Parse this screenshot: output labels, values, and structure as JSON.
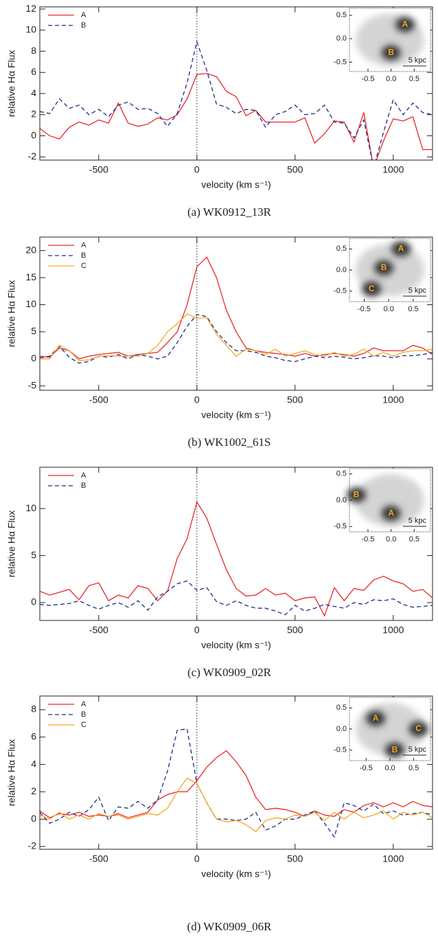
{
  "chart_data": [
    {
      "type": "line",
      "caption": "(a) WK0912_13R",
      "xlabel": "velocity (km s⁻¹)",
      "ylabel": "relative Hα Flux",
      "xlim": [
        -800,
        1200
      ],
      "xticks": [
        -500,
        0,
        500,
        1000
      ],
      "ylim": [
        -2.3,
        12.2
      ],
      "yticks": [
        -2,
        0,
        2,
        4,
        6,
        8,
        10,
        12
      ],
      "vline": 0,
      "legend": "upper left",
      "x": [
        -800,
        -750,
        -700,
        -650,
        -600,
        -550,
        -500,
        -450,
        -400,
        -350,
        -300,
        -250,
        -200,
        -150,
        -100,
        -50,
        0,
        50,
        100,
        150,
        200,
        250,
        300,
        350,
        400,
        450,
        500,
        550,
        600,
        650,
        700,
        750,
        800,
        850,
        900,
        950,
        1000,
        1050,
        1100,
        1150,
        1200
      ],
      "series": [
        {
          "name": "A",
          "color": "#e8262a",
          "linestyle": "solid",
          "values": [
            0.7,
            0,
            -0.3,
            0.8,
            1.3,
            1.0,
            1.5,
            1.2,
            3.1,
            1.2,
            0.9,
            1.1,
            1.7,
            1.5,
            2.0,
            3.5,
            5.8,
            5.9,
            5.6,
            4.2,
            3.7,
            1.9,
            2.4,
            1.3,
            1.3,
            1.3,
            1.3,
            1.7,
            -0.7,
            0.2,
            1.4,
            1.3,
            -0.6,
            2.2,
            -3.0,
            -0.5,
            1.6,
            1.4,
            1.8,
            -1.3,
            -1.3
          ]
        },
        {
          "name": "B",
          "color": "#1c2a85",
          "linestyle": "dashed",
          "values": [
            2.3,
            2.1,
            3.5,
            2.6,
            2.9,
            2.0,
            2.5,
            1.8,
            2.9,
            3.2,
            2.5,
            2.6,
            2.1,
            0.9,
            2.1,
            5.0,
            8.9,
            6.2,
            3.0,
            2.7,
            2.1,
            2.5,
            2.4,
            0.8,
            2.0,
            2.3,
            2.9,
            2.0,
            2.1,
            2.9,
            1.3,
            1.2,
            -0.2,
            1.5,
            -3.0,
            0.3,
            3.4,
            2.0,
            3.1,
            2.2,
            2.0
          ]
        }
      ],
      "inset": {
        "xlim": [
          -0.9,
          0.85
        ],
        "ylim": [
          -0.7,
          0.65
        ],
        "xticks": [
          -0.5,
          {
            "value": 0,
            "label": "0.0"
          },
          0.5
        ],
        "yticks": [
          -0.5,
          {
            "value": 0,
            "label": "0.0"
          },
          0.5
        ],
        "scale_label": "5 kpc",
        "labels": [
          {
            "text": "A",
            "x": 0.3,
            "y": 0.3
          },
          {
            "text": "B",
            "x": 0.0,
            "y": -0.3
          }
        ]
      }
    },
    {
      "type": "line",
      "caption": "(b) WK1002_61S",
      "xlabel": "velocity (km s⁻¹)",
      "ylabel": "relative Hα Flux",
      "xlim": [
        -800,
        1200
      ],
      "xticks": [
        -500,
        0,
        500,
        1000
      ],
      "ylim": [
        -5.8,
        22.5
      ],
      "yticks": [
        -5,
        0,
        5,
        10,
        15,
        20
      ],
      "vline": 0,
      "legend": "upper left",
      "x": [
        -800,
        -750,
        -700,
        -650,
        -600,
        -550,
        -500,
        -450,
        -400,
        -350,
        -300,
        -250,
        -200,
        -150,
        -100,
        -50,
        0,
        50,
        100,
        150,
        200,
        250,
        300,
        350,
        400,
        450,
        500,
        550,
        600,
        650,
        700,
        750,
        800,
        850,
        900,
        950,
        1000,
        1050,
        1100,
        1150,
        1200
      ],
      "series": [
        {
          "name": "A",
          "color": "#e8262a",
          "linestyle": "solid",
          "values": [
            0.5,
            0.3,
            2,
            1.5,
            0,
            0.5,
            0.8,
            1,
            1.2,
            0.5,
            0.8,
            1,
            1.2,
            3,
            5,
            10,
            17,
            18.8,
            15,
            9,
            5,
            2,
            1.5,
            1.2,
            1,
            0.8,
            0.5,
            1,
            0.5,
            0.8,
            1,
            0.8,
            0.5,
            1,
            2,
            1.5,
            1.5,
            1.5,
            2.5,
            2,
            0.8
          ]
        },
        {
          "name": "B",
          "color": "#1c2a85",
          "linestyle": "dashed",
          "values": [
            0.2,
            0.5,
            2.3,
            0.3,
            -0.8,
            -0.5,
            0.5,
            0.3,
            0.8,
            0,
            0.8,
            0.5,
            0,
            0.5,
            3,
            6,
            8.2,
            7.8,
            5,
            3,
            1.5,
            1.5,
            1.2,
            0.5,
            0.2,
            -0.3,
            -0.5,
            0,
            0.5,
            0.2,
            0.5,
            0.3,
            0,
            0.2,
            0.6,
            0.5,
            0.2,
            0.6,
            0.6,
            0.8,
            1.2
          ]
        },
        {
          "name": "C",
          "color": "#f5a623",
          "linestyle": "solid",
          "values": [
            0,
            0,
            2.5,
            1.5,
            -0.3,
            -0.2,
            0.5,
            0.6,
            0.5,
            0.5,
            0.5,
            1,
            2.5,
            5,
            6.5,
            8.3,
            7.5,
            7.6,
            4.5,
            2.5,
            0.5,
            1.8,
            1.5,
            0.8,
            1.8,
            0.5,
            1,
            1.5,
            0.8,
            0.5,
            1.2,
            0.5,
            0.8,
            1.8,
            0.5,
            1.2,
            0.5,
            1.2,
            1.5,
            1.5,
            1.8
          ]
        }
      ],
      "inset": {
        "xlim": [
          -0.8,
          0.85
        ],
        "ylim": [
          -0.75,
          0.75
        ],
        "xticks": [
          -0.5,
          {
            "value": 0,
            "label": "0.0"
          },
          0.5
        ],
        "yticks": [
          -0.5,
          {
            "value": 0,
            "label": "0.0"
          },
          0.5
        ],
        "scale_label": "5 kpc",
        "labels": [
          {
            "text": "A",
            "x": 0.25,
            "y": 0.5
          },
          {
            "text": "B",
            "x": -0.1,
            "y": 0.05
          },
          {
            "text": "C",
            "x": -0.35,
            "y": -0.45
          }
        ]
      }
    },
    {
      "type": "line",
      "caption": "(c) WK0909_02R",
      "xlabel": "velocity (km s⁻¹)",
      "ylabel": "relative Hα Flux",
      "xlim": [
        -800,
        1200
      ],
      "xticks": [
        -500,
        0,
        500,
        1000
      ],
      "ylim": [
        -1.9,
        14.4
      ],
      "yticks": [
        0,
        5,
        10
      ],
      "vline": 0,
      "legend": "upper left",
      "x": [
        -800,
        -750,
        -700,
        -650,
        -600,
        -550,
        -500,
        -450,
        -400,
        -350,
        -300,
        -250,
        -200,
        -150,
        -100,
        -50,
        0,
        50,
        100,
        150,
        200,
        250,
        300,
        350,
        400,
        450,
        500,
        550,
        600,
        650,
        700,
        750,
        800,
        850,
        900,
        950,
        1000,
        1050,
        1100,
        1150,
        1200
      ],
      "series": [
        {
          "name": "A",
          "color": "#e8262a",
          "linestyle": "solid",
          "values": [
            1.2,
            0.8,
            1.1,
            1.4,
            0.3,
            1.8,
            2.1,
            0.2,
            0.8,
            0.5,
            1.8,
            1.5,
            0.2,
            1.2,
            4.7,
            6.8,
            10.7,
            9.0,
            6.2,
            3.5,
            1.5,
            0.7,
            0.8,
            1.5,
            0.8,
            1.0,
            0.2,
            0.5,
            0.6,
            -1.4,
            1.6,
            0.2,
            1.5,
            1.3,
            2.4,
            2.8,
            2.3,
            2.0,
            1.2,
            1.4,
            0.5
          ]
        },
        {
          "name": "B",
          "color": "#1c2a85",
          "linestyle": "dashed",
          "values": [
            -0.2,
            -0.3,
            -0.2,
            -0.1,
            0.2,
            -0.3,
            -0.7,
            -0.3,
            0,
            -0.5,
            0.2,
            -0.8,
            0.6,
            1.2,
            2.0,
            2.3,
            1.3,
            1.6,
            0.1,
            -0.3,
            0.2,
            -0.3,
            -0.6,
            -0.6,
            -0.9,
            -1.3,
            -0.3,
            -0.9,
            -0.6,
            -0.2,
            -0.4,
            -0.6,
            0.0,
            -0.2,
            0.3,
            0.2,
            0.4,
            -0.2,
            -0.5,
            -0.4,
            -0.3
          ]
        }
      ],
      "inset": {
        "xlim": [
          -0.9,
          0.85
        ],
        "ylim": [
          -0.6,
          0.6
        ],
        "xticks": [
          -0.5,
          {
            "value": 0,
            "label": "0.0"
          },
          0.5
        ],
        "yticks": [
          -0.5,
          {
            "value": 0,
            "label": "0.0"
          },
          0.5
        ],
        "scale_label": "5 kpc",
        "labels": [
          {
            "text": "B",
            "x": -0.75,
            "y": 0.1
          },
          {
            "text": "A",
            "x": 0.0,
            "y": -0.25
          }
        ]
      }
    },
    {
      "type": "line",
      "caption": "(d) WK0909_06R",
      "xlabel": "velocity (km s⁻¹)",
      "ylabel": "relative Hα Flux",
      "xlim": [
        -800,
        1200
      ],
      "xticks": [
        -500,
        0,
        500,
        1000
      ],
      "ylim": [
        -2.2,
        9.0
      ],
      "yticks": [
        -2,
        0,
        2,
        4,
        6,
        8
      ],
      "vline": 0,
      "legend": "upper left",
      "x": [
        -800,
        -750,
        -700,
        -650,
        -600,
        -550,
        -500,
        -450,
        -400,
        -350,
        -300,
        -250,
        -200,
        -150,
        -100,
        -50,
        0,
        50,
        100,
        150,
        200,
        250,
        300,
        350,
        400,
        450,
        500,
        550,
        600,
        650,
        700,
        750,
        800,
        850,
        900,
        950,
        1000,
        1050,
        1100,
        1150,
        1200
      ],
      "series": [
        {
          "name": "A",
          "color": "#e8262a",
          "linestyle": "solid",
          "values": [
            0.6,
            0.1,
            0.4,
            0.3,
            0.5,
            0.2,
            0.3,
            0.2,
            0.4,
            0.1,
            0.3,
            0.5,
            1.4,
            1.8,
            2.0,
            2.0,
            2.8,
            3.8,
            4.5,
            5.0,
            4.2,
            3.2,
            1.6,
            0.7,
            0.8,
            0.7,
            0.5,
            0.2,
            0.6,
            0.3,
            0.2,
            0.7,
            0.5,
            1.0,
            1.2,
            0.9,
            1.2,
            0.9,
            1.3,
            1.0,
            0.9
          ]
        },
        {
          "name": "B",
          "color": "#1c2a85",
          "linestyle": "dashed",
          "values": [
            0.5,
            -0.3,
            0,
            0.5,
            0.2,
            0.7,
            1.6,
            -0.1,
            0.9,
            0.8,
            1.3,
            0.8,
            1.4,
            3.5,
            6.5,
            6.6,
            2.6,
            1.2,
            0,
            0,
            -0.1,
            0,
            0.5,
            -0.8,
            -0.5,
            0,
            0,
            0.3,
            0.6,
            -0.3,
            -1.3,
            1.2,
            1.0,
            0.6,
            1.1,
            0.4,
            0.6,
            0.3,
            0.4,
            0.5,
            0.3
          ]
        },
        {
          "name": "C",
          "color": "#f5a623",
          "linestyle": "solid",
          "values": [
            0.3,
            0,
            0.5,
            0,
            0.3,
            0,
            0.4,
            0.2,
            0.3,
            0,
            0.2,
            0.4,
            0.3,
            0.8,
            2.0,
            3.0,
            2.6,
            1.2,
            0,
            -0.2,
            -0.1,
            -0.4,
            -0.9,
            -0.1,
            0.1,
            0,
            0.3,
            0.2,
            0.5,
            -0.1,
            0.5,
            0,
            0.5,
            0.1,
            0.3,
            0.6,
            0,
            0.5,
            0.3,
            0.5,
            0.1
          ]
        }
      ],
      "inset": {
        "xlim": [
          -0.85,
          0.85
        ],
        "ylim": [
          -0.75,
          0.75
        ],
        "xticks": [
          -0.5,
          {
            "value": 0,
            "label": "0.0"
          },
          0.5
        ],
        "yticks": [
          -0.5,
          {
            "value": 0,
            "label": "0.0"
          },
          0.5
        ],
        "scale_label": "5 kpc",
        "labels": [
          {
            "text": "A",
            "x": -0.3,
            "y": 0.25
          },
          {
            "text": "B",
            "x": 0.1,
            "y": -0.5
          },
          {
            "text": "C",
            "x": 0.6,
            "y": 0.0
          }
        ]
      }
    }
  ]
}
